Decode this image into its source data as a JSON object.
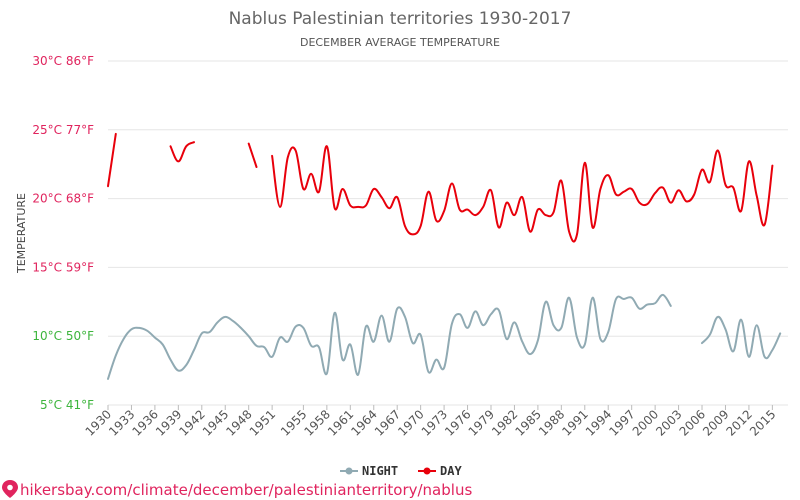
{
  "chart_data": {
    "type": "line",
    "title": "Nablus Palestinian territories 1930-2017",
    "subtitle": "DECEMBER AVERAGE TEMPERATURE",
    "ylabel": "TEMPERATURE",
    "ylim": [
      5,
      30
    ],
    "xlim": [
      1930,
      2017
    ],
    "grid": true,
    "legend_position": "bottom-center",
    "y_ticks": [
      {
        "value": 30,
        "label": "30°C 86°F"
      },
      {
        "value": 25,
        "label": "25°C 77°F"
      },
      {
        "value": 20,
        "label": "20°C 68°F"
      },
      {
        "value": 15,
        "label": "15°C 59°F"
      },
      {
        "value": 10,
        "label": "10°C 50°F"
      },
      {
        "value": 5,
        "label": "5°C 41°F"
      }
    ],
    "x_ticks": [
      "1930",
      "1933",
      "1936",
      "1939",
      "1942",
      "1945",
      "1948",
      "1951",
      "1955",
      "1958",
      "1961",
      "1964",
      "1967",
      "1970",
      "1973",
      "1976",
      "1979",
      "1982",
      "1985",
      "1988",
      "1991",
      "1994",
      "1997",
      "2000",
      "2003",
      "2006",
      "2009",
      "2012",
      "2015"
    ],
    "series": [
      {
        "name": "NIGHT",
        "color": "#90aab3",
        "segments": [
          [
            [
              1930,
              6.9
            ],
            [
              1931,
              8.6
            ],
            [
              1932,
              9.8
            ],
            [
              1933,
              10.5
            ],
            [
              1934,
              10.6
            ],
            [
              1935,
              10.4
            ],
            [
              1936,
              9.9
            ],
            [
              1937,
              9.4
            ],
            [
              1938,
              8.3
            ],
            [
              1939,
              7.5
            ],
            [
              1940,
              7.9
            ],
            [
              1941,
              9.0
            ],
            [
              1942,
              10.2
            ],
            [
              1943,
              10.3
            ],
            [
              1944,
              11.0
            ],
            [
              1945,
              11.4
            ],
            [
              1946,
              11.1
            ],
            [
              1947,
              10.6
            ],
            [
              1948,
              10.0
            ],
            [
              1949,
              9.3
            ],
            [
              1950,
              9.2
            ],
            [
              1951,
              8.5
            ],
            [
              1952,
              9.9
            ],
            [
              1953,
              9.6
            ],
            [
              1954,
              10.7
            ],
            [
              1955,
              10.6
            ],
            [
              1956,
              9.3
            ],
            [
              1957,
              9.2
            ],
            [
              1958,
              7.3
            ],
            [
              1959,
              11.7
            ],
            [
              1960,
              8.3
            ],
            [
              1961,
              9.4
            ],
            [
              1962,
              7.2
            ],
            [
              1963,
              10.7
            ],
            [
              1964,
              9.6
            ],
            [
              1965,
              11.5
            ],
            [
              1966,
              9.6
            ],
            [
              1967,
              12.0
            ],
            [
              1968,
              11.4
            ],
            [
              1969,
              9.5
            ],
            [
              1970,
              10.1
            ],
            [
              1971,
              7.4
            ],
            [
              1972,
              8.3
            ],
            [
              1973,
              7.7
            ],
            [
              1974,
              10.9
            ],
            [
              1975,
              11.6
            ],
            [
              1976,
              10.6
            ],
            [
              1977,
              11.8
            ],
            [
              1978,
              10.8
            ],
            [
              1979,
              11.6
            ],
            [
              1980,
              11.9
            ],
            [
              1981,
              9.8
            ],
            [
              1982,
              11.0
            ],
            [
              1983,
              9.6
            ],
            [
              1984,
              8.7
            ],
            [
              1985,
              9.7
            ],
            [
              1986,
              12.5
            ],
            [
              1987,
              10.8
            ],
            [
              1988,
              10.6
            ],
            [
              1989,
              12.8
            ],
            [
              1990,
              9.9
            ],
            [
              1991,
              9.4
            ],
            [
              1992,
              12.8
            ],
            [
              1993,
              9.8
            ],
            [
              1994,
              10.3
            ],
            [
              1995,
              12.7
            ],
            [
              1996,
              12.7
            ],
            [
              1997,
              12.8
            ],
            [
              1998,
              12.0
            ],
            [
              1999,
              12.3
            ],
            [
              2000,
              12.4
            ],
            [
              2001,
              13.0
            ],
            [
              2002,
              12.2
            ]
          ],
          [
            [
              2006,
              9.5
            ],
            [
              2007,
              10.1
            ],
            [
              2008,
              11.4
            ],
            [
              2009,
              10.5
            ],
            [
              2010,
              8.9
            ],
            [
              2011,
              11.2
            ],
            [
              2012,
              8.5
            ],
            [
              2013,
              10.8
            ],
            [
              2014,
              8.5
            ],
            [
              2015,
              9.0
            ],
            [
              2016,
              10.2
            ]
          ]
        ]
      },
      {
        "name": "DAY",
        "color": "#e8000b",
        "segments": [
          [
            [
              1930,
              20.9
            ],
            [
              1931,
              24.7
            ]
          ],
          [
            [
              1938,
              23.8
            ],
            [
              1939,
              22.7
            ],
            [
              1940,
              23.8
            ],
            [
              1941,
              24.1
            ]
          ],
          [
            [
              1948,
              24.0
            ],
            [
              1949,
              22.3
            ]
          ],
          [
            [
              1951,
              23.1
            ],
            [
              1952,
              19.4
            ],
            [
              1953,
              23.0
            ],
            [
              1954,
              23.5
            ],
            [
              1955,
              20.7
            ],
            [
              1956,
              21.8
            ],
            [
              1957,
              20.5
            ],
            [
              1958,
              23.8
            ],
            [
              1959,
              19.3
            ],
            [
              1960,
              20.7
            ],
            [
              1961,
              19.5
            ],
            [
              1962,
              19.4
            ],
            [
              1963,
              19.5
            ],
            [
              1964,
              20.7
            ],
            [
              1965,
              20.1
            ],
            [
              1966,
              19.3
            ],
            [
              1967,
              20.1
            ],
            [
              1968,
              18.0
            ],
            [
              1969,
              17.4
            ],
            [
              1970,
              18.0
            ],
            [
              1971,
              20.5
            ],
            [
              1972,
              18.4
            ],
            [
              1973,
              19.1
            ],
            [
              1974,
              21.1
            ],
            [
              1975,
              19.2
            ],
            [
              1976,
              19.2
            ],
            [
              1977,
              18.8
            ],
            [
              1978,
              19.4
            ],
            [
              1979,
              20.6
            ],
            [
              1980,
              17.9
            ],
            [
              1981,
              19.7
            ],
            [
              1982,
              18.8
            ],
            [
              1983,
              20.1
            ],
            [
              1984,
              17.6
            ],
            [
              1985,
              19.2
            ],
            [
              1986,
              18.8
            ],
            [
              1987,
              19.0
            ],
            [
              1988,
              21.3
            ],
            [
              1989,
              17.6
            ],
            [
              1990,
              17.4
            ],
            [
              1991,
              22.6
            ],
            [
              1992,
              17.9
            ],
            [
              1993,
              20.7
            ],
            [
              1994,
              21.7
            ],
            [
              1995,
              20.3
            ],
            [
              1996,
              20.5
            ],
            [
              1997,
              20.7
            ],
            [
              1998,
              19.7
            ],
            [
              1999,
              19.6
            ],
            [
              2000,
              20.4
            ],
            [
              2001,
              20.8
            ],
            [
              2002,
              19.7
            ],
            [
              2003,
              20.6
            ],
            [
              2004,
              19.8
            ],
            [
              2005,
              20.3
            ],
            [
              2006,
              22.1
            ],
            [
              2007,
              21.2
            ],
            [
              2008,
              23.5
            ],
            [
              2009,
              21.0
            ],
            [
              2010,
              20.8
            ],
            [
              2011,
              19.1
            ],
            [
              2012,
              22.7
            ],
            [
              2013,
              20.2
            ],
            [
              2014,
              18.1
            ],
            [
              2015,
              22.4
            ]
          ]
        ]
      }
    ]
  },
  "colors": {
    "y_tick_upper": "#e0245e",
    "y_tick_lower": "#3db53d",
    "footer": "#e0245e"
  },
  "footer": {
    "url_text": "hikersbay.com/climate/december/palestinianterritory/nablus"
  }
}
